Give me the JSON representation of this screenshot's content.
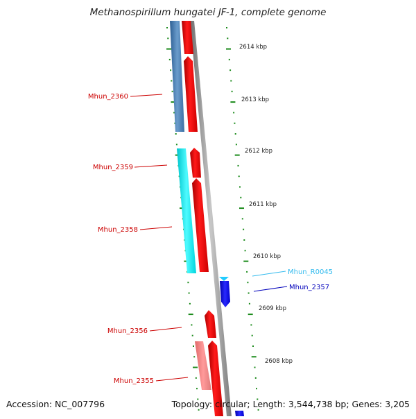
{
  "title": "Methanospirillum hungatei JF-1, complete genome",
  "footer": {
    "accession": "Accession: NC_007796",
    "summary": "Topology: circular; Length: 3,544,738 bp; Genes: 3,205"
  },
  "kbp_labels": [
    "2614 kbp",
    "2613 kbp",
    "2612 kbp",
    "2611 kbp",
    "2610 kbp",
    "2609 kbp",
    "2608 kbp"
  ],
  "genes": [
    {
      "label": "Mhun_2360",
      "color": "#cc0000"
    },
    {
      "label": "Mhun_2359",
      "color": "#cc0000"
    },
    {
      "label": "Mhun_2358",
      "color": "#cc0000"
    },
    {
      "label": "Mhun_R0045",
      "color": "#33bbee"
    },
    {
      "label": "Mhun_2357",
      "color": "#0000bb"
    },
    {
      "label": "Mhun_2356",
      "color": "#cc0000"
    },
    {
      "label": "Mhun_2355",
      "color": "#cc0000"
    }
  ],
  "colors": {
    "cds": "#ff0000",
    "cds_alt": "#ff8a8a",
    "steel": "#4a7fb5",
    "cyan": "#00e5ee",
    "blue": "#0000ee",
    "trna": "#22ccff",
    "backbone": "#8c8c8c",
    "tick": "#1a8a1a"
  }
}
